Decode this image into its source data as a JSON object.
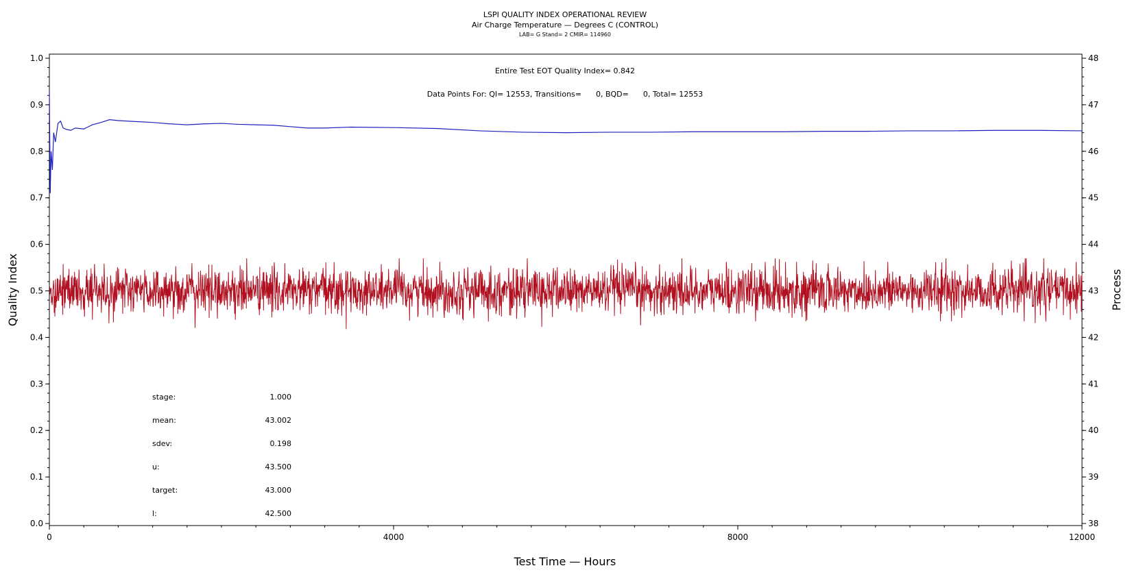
{
  "chart_data": {
    "type": "line",
    "title": "LSPI QUALITY INDEX OPERATIONAL REVIEW",
    "subtitle": "Air Charge Temperature — Degrees C (CONTROL)",
    "subtitle2": "LAB= G Stand= 2 CMIR= 114960",
    "xlabel": "Test Time — Hours",
    "ylabel": "Quality Index",
    "y2label": "Process",
    "xlim": [
      0,
      12000
    ],
    "ylim": [
      0.0,
      1.0
    ],
    "y2lim": [
      38,
      48
    ],
    "x_ticks": [
      0,
      4000,
      8000,
      12000
    ],
    "x_tick_labels": [
      "0",
      "4000",
      "8000",
      "12000"
    ],
    "y_ticks": [
      0.0,
      0.1,
      0.2,
      0.3,
      0.4,
      0.5,
      0.6,
      0.7,
      0.8,
      0.9,
      1.0
    ],
    "y_tick_labels": [
      "0.0",
      "0.1",
      "0.2",
      "0.3",
      "0.4",
      "0.5",
      "0.6",
      "0.7",
      "0.8",
      "0.9",
      "1.0"
    ],
    "y2_ticks": [
      38,
      39,
      40,
      41,
      42,
      43,
      44,
      45,
      46,
      47,
      48
    ],
    "y2_tick_labels": [
      "38",
      "39",
      "40",
      "41",
      "42",
      "43",
      "44",
      "45",
      "46",
      "47",
      "48"
    ],
    "grid": false,
    "series": [
      {
        "axis": "left",
        "color": "#1f1fbf",
        "x": [
          0,
          10,
          20,
          35,
          50,
          70,
          100,
          130,
          160,
          200,
          250,
          300,
          400,
          500,
          600,
          700,
          800,
          1000,
          1200,
          1400,
          1600,
          1800,
          2000,
          2200,
          2400,
          2600,
          2800,
          3000,
          3200,
          3500,
          4000,
          4500,
          5000,
          5500,
          6000,
          6500,
          7000,
          7500,
          8000,
          8500,
          9000,
          9500,
          10000,
          10500,
          11000,
          11500,
          12000
        ],
        "values": [
          0.93,
          0.71,
          0.8,
          0.76,
          0.84,
          0.82,
          0.86,
          0.865,
          0.85,
          0.847,
          0.845,
          0.85,
          0.848,
          0.857,
          0.862,
          0.868,
          0.866,
          0.864,
          0.862,
          0.859,
          0.857,
          0.859,
          0.86,
          0.858,
          0.857,
          0.856,
          0.853,
          0.85,
          0.85,
          0.852,
          0.851,
          0.849,
          0.844,
          0.841,
          0.84,
          0.841,
          0.841,
          0.842,
          0.842,
          0.842,
          0.843,
          0.843,
          0.844,
          0.844,
          0.845,
          0.845,
          0.844
        ]
      },
      {
        "axis": "right",
        "color": "#b01020",
        "mean": 43.002,
        "sdev": 0.198,
        "x_range": [
          0,
          12000
        ],
        "min": 42.1,
        "max": 43.7
      }
    ],
    "annotations": {
      "eot": "Entire Test EOT Quality Index=   0.842",
      "points": "Data Points For: QI= 12553, Transitions=      0, BQD=      0, Total= 12553"
    },
    "stats": [
      {
        "label": "stage:",
        "value": "1.000"
      },
      {
        "label": "mean:",
        "value": "43.002"
      },
      {
        "label": "sdev:",
        "value": "0.198"
      },
      {
        "label": "u:",
        "value": "43.500"
      },
      {
        "label": "target:",
        "value": "43.000"
      },
      {
        "label": "l:",
        "value": "42.500"
      }
    ]
  }
}
